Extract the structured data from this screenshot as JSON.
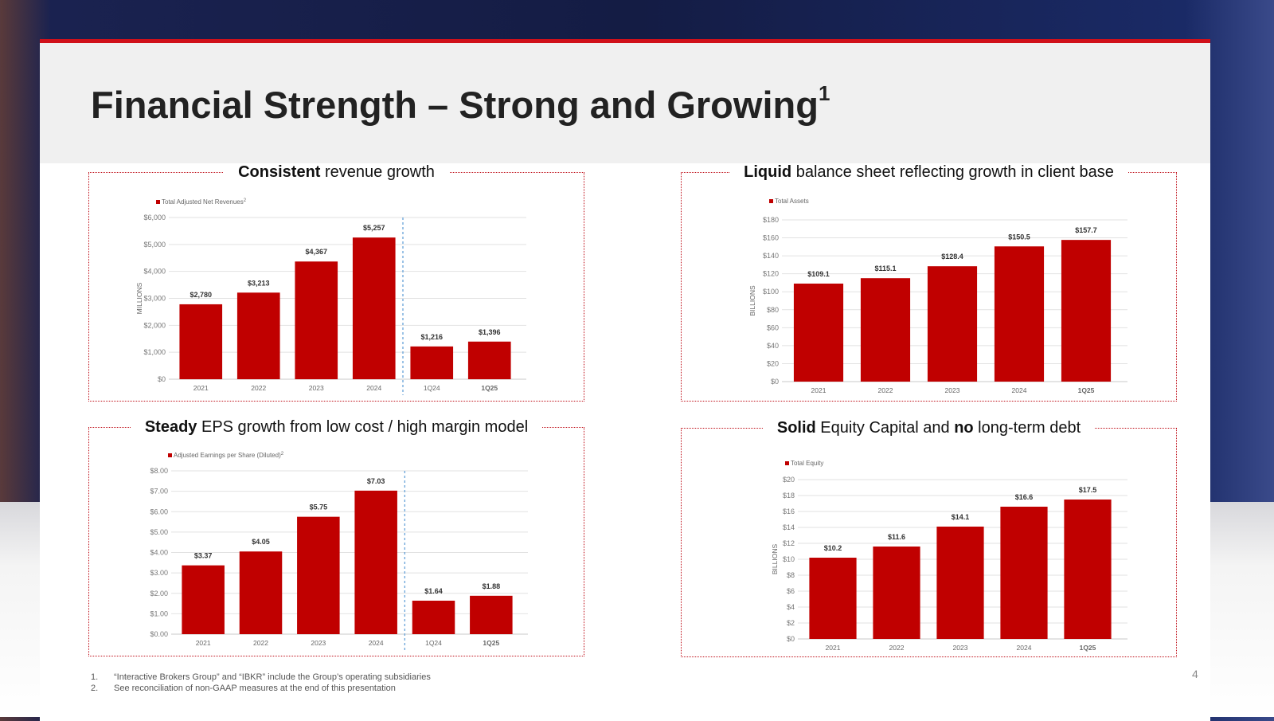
{
  "slide": {
    "title": "Financial Strength – Strong and Growing",
    "title_sup": "1",
    "page_number": "4",
    "footnotes": [
      {
        "num": "1.",
        "text": "“Interactive Brokers Group” and “IBKR” include the Group’s operating subsidiaries"
      },
      {
        "num": "2.",
        "text": "See reconciliation of non-GAAP measures at the end of this presentation"
      }
    ],
    "colors": {
      "bar": "#c00000",
      "accent": "#d0101a",
      "separator": "#5b9bd5"
    }
  },
  "chart_data": [
    {
      "type": "bar",
      "title_bold": "Consistent",
      "title_rest": " revenue growth",
      "legend": "Total Adjusted Net Revenues",
      "legend_sup": "2",
      "ylabel": "MILLIONS",
      "categories": [
        "2021",
        "2022",
        "2023",
        "2024",
        "1Q24",
        "1Q25"
      ],
      "values": [
        2780,
        3213,
        4367,
        5257,
        1216,
        1396
      ],
      "data_labels": [
        "$2,780",
        "$3,213",
        "$4,367",
        "$5,257",
        "$1,216",
        "$1,396"
      ],
      "yticks": [
        "$0",
        "$1,000",
        "$2,000",
        "$3,000",
        "$4,000",
        "$5,000",
        "$6,000"
      ],
      "ylim": [
        0,
        6000
      ],
      "grid": true,
      "legend_position": "top-left",
      "separator_after": "2024",
      "bold_categories": [
        "1Q25"
      ]
    },
    {
      "type": "bar",
      "title_bold": "Liquid",
      "title_rest": " balance sheet reflecting growth in client base",
      "legend": "Total Assets",
      "legend_sup": "",
      "ylabel": "BILLIONS",
      "categories": [
        "2021",
        "2022",
        "2023",
        "2024",
        "1Q25"
      ],
      "values": [
        109.1,
        115.1,
        128.4,
        150.5,
        157.7
      ],
      "data_labels": [
        "$109.1",
        "$115.1",
        "$128.4",
        "$150.5",
        "$157.7"
      ],
      "yticks": [
        "$0",
        "$20",
        "$40",
        "$60",
        "$80",
        "$100",
        "$120",
        "$140",
        "$160",
        "$180"
      ],
      "ylim": [
        0,
        180
      ],
      "grid": true,
      "legend_position": "top-left",
      "separator_after": null,
      "bold_categories": [
        "1Q25"
      ]
    },
    {
      "type": "bar",
      "title_bold": "Steady",
      "title_rest": " EPS growth from low cost / high margin model",
      "legend": "Adjusted Earnings per Share (Diluted)",
      "legend_sup": "2",
      "ylabel": "",
      "categories": [
        "2021",
        "2022",
        "2023",
        "2024",
        "1Q24",
        "1Q25"
      ],
      "values": [
        3.37,
        4.05,
        5.75,
        7.03,
        1.64,
        1.88
      ],
      "data_labels": [
        "$3.37",
        "$4.05",
        "$5.75",
        "$7.03",
        "$1.64",
        "$1.88"
      ],
      "yticks": [
        "$0.00",
        "$1.00",
        "$2.00",
        "$3.00",
        "$4.00",
        "$5.00",
        "$6.00",
        "$7.00",
        "$8.00"
      ],
      "ylim": [
        0,
        8
      ],
      "grid": true,
      "legend_position": "top-left",
      "separator_after": "2024",
      "bold_categories": [
        "1Q25"
      ]
    },
    {
      "type": "bar",
      "title_bold": "Solid",
      "title_rest": " Equity Capital and ",
      "title_bold2": "no",
      "title_rest2": " long-term debt",
      "legend": "Total Equity",
      "legend_sup": "",
      "ylabel": "BILLIONS",
      "categories": [
        "2021",
        "2022",
        "2023",
        "2024",
        "1Q25"
      ],
      "values": [
        10.2,
        11.6,
        14.1,
        16.6,
        17.5
      ],
      "data_labels": [
        "$10.2",
        "$11.6",
        "$14.1",
        "$16.6",
        "$17.5"
      ],
      "yticks": [
        "$0",
        "$2",
        "$4",
        "$6",
        "$8",
        "$10",
        "$12",
        "$14",
        "$16",
        "$18",
        "$20"
      ],
      "ylim": [
        0,
        20
      ],
      "grid": true,
      "legend_position": "top-left",
      "separator_after": null,
      "bold_categories": [
        "1Q25"
      ]
    }
  ]
}
